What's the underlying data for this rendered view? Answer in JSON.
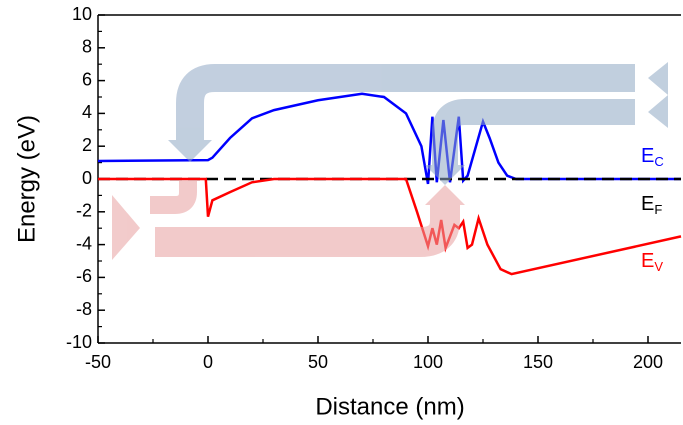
{
  "chart_data": {
    "type": "line",
    "x_label": "Distance (nm)",
    "y_label": "Energy (eV)",
    "xlim": [
      -50,
      215
    ],
    "ylim": [
      -10,
      10
    ],
    "xticks": [
      -50,
      0,
      50,
      100,
      150,
      200
    ],
    "yticks": [
      -10,
      -8,
      -6,
      -4,
      -2,
      0,
      2,
      4,
      6,
      8,
      10
    ],
    "series": [
      {
        "name": "E",
        "subscript": "C",
        "color": "#0000ff",
        "x": [
          -50,
          0,
          2,
          10,
          20,
          30,
          50,
          70,
          80,
          90,
          97,
          100,
          102,
          104,
          107,
          110,
          114,
          116,
          118,
          125,
          128,
          132,
          136,
          140,
          215
        ],
        "values": [
          1.1,
          1.15,
          1.3,
          2.5,
          3.7,
          4.2,
          4.8,
          5.2,
          5.0,
          4.0,
          2.0,
          -0.3,
          3.8,
          -0.2,
          3.6,
          -0.2,
          3.8,
          -0.1,
          0.2,
          3.5,
          2.5,
          1.0,
          0.2,
          0,
          0
        ]
      },
      {
        "name": "E",
        "subscript": "F",
        "color": "#000000",
        "dashed": true,
        "x": [
          -50,
          215
        ],
        "values": [
          0,
          0
        ]
      },
      {
        "name": "E",
        "subscript": "V",
        "color": "#ff0000",
        "x": [
          -50,
          -1,
          0,
          2,
          10,
          20,
          30,
          90,
          95,
          100,
          102,
          104,
          106,
          108,
          112,
          114,
          116,
          118,
          120,
          123,
          127,
          133,
          138,
          215
        ],
        "values": [
          0,
          0,
          -2.3,
          -1.3,
          -0.8,
          -0.2,
          0,
          0,
          -2.0,
          -4.1,
          -3.0,
          -4.0,
          -2.5,
          -4.2,
          -2.8,
          -3.0,
          -2.6,
          -4.2,
          -4.0,
          -2.4,
          -4.0,
          -5.5,
          -5.8,
          -3.5
        ]
      }
    ]
  }
}
